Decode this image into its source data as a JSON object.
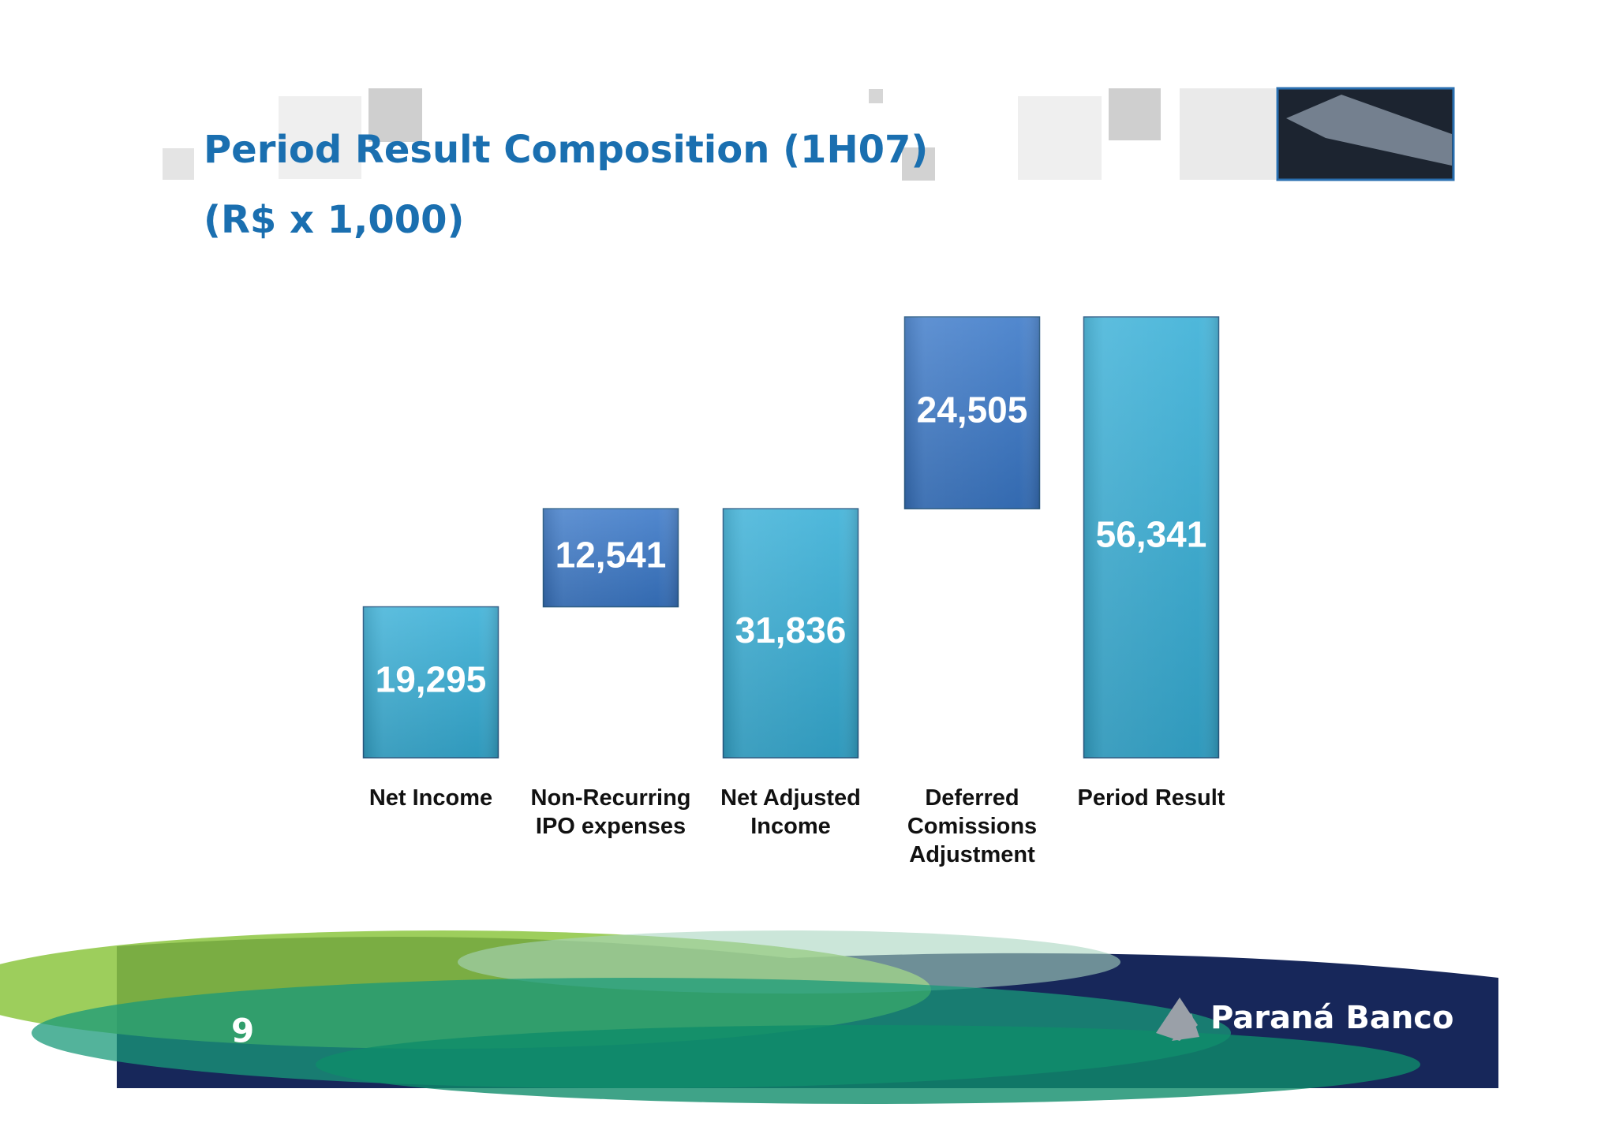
{
  "chart_data": {
    "type": "waterfall",
    "title": "Period Result Composition (1H07)",
    "subtitle": "(R$ x 1,000)",
    "categories": [
      "Net Income",
      "Non-Recurring\nIPO expenses",
      "Net Adjusted\nIncome",
      "Deferred\nComissions\nAdjustment",
      "Period Result"
    ],
    "values": [
      19295,
      12541,
      31836,
      24505,
      56341
    ],
    "value_labels": [
      "19,295",
      "12,541",
      "31,836",
      "24,505",
      "56,341"
    ],
    "measure": [
      "relative",
      "relative",
      "total",
      "relative",
      "total"
    ],
    "colors": [
      "#36aed6",
      "#3a78c8",
      "#36aed6",
      "#3a78c8",
      "#36aed6"
    ]
  },
  "page_number": "9",
  "logo": "Paraná Banco"
}
